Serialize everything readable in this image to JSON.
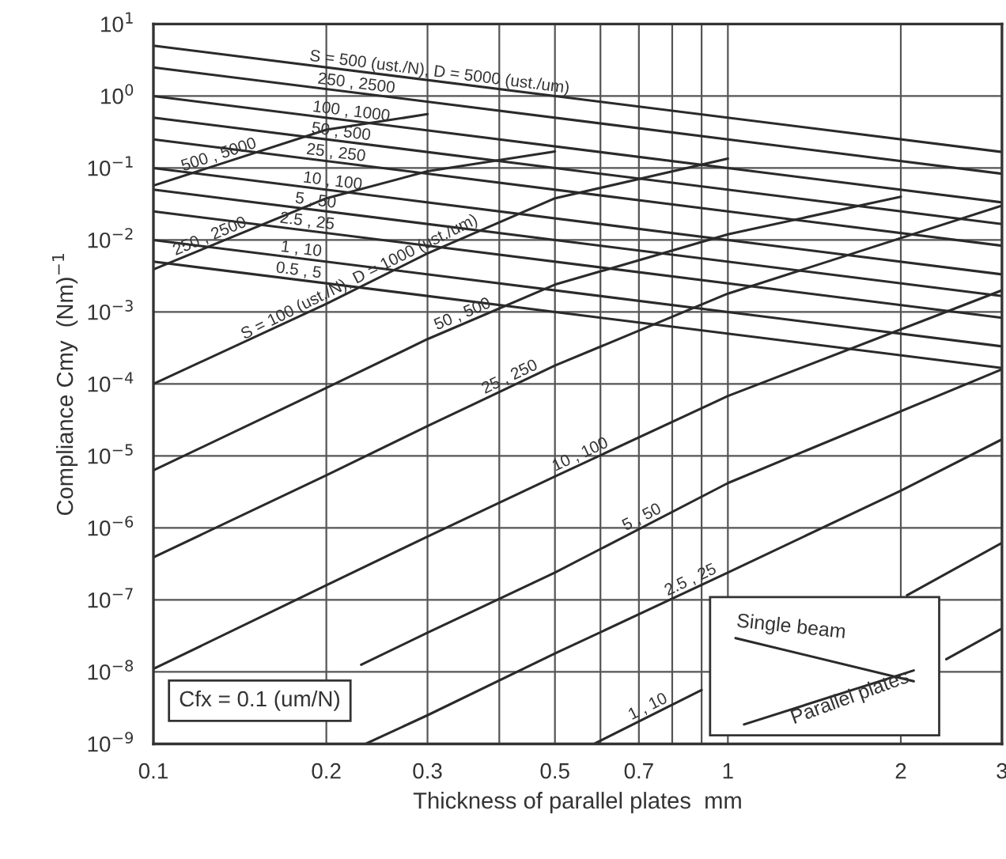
{
  "chart_data": {
    "type": "line",
    "xlabel": "Thickness of parallel plates  mm",
    "ylabel": "Compliance Cmy  (Nm)$^{−1}$",
    "log": "xy",
    "grid": true,
    "xlim": [
      0.1,
      3
    ],
    "ylim": [
      1e-09,
      10
    ],
    "xticks": [
      0.1,
      0.2,
      0.3,
      {
        "value": 0.4,
        "label": null
      },
      0.5,
      {
        "value": 0.6,
        "label": null
      },
      0.7,
      {
        "value": 0.8,
        "label": null
      },
      {
        "value": 0.9,
        "label": null
      },
      1,
      2,
      3
    ],
    "yticks": [
      {
        "value": 1e-09,
        "label": "10$^{−9}$"
      },
      {
        "value": 1e-08,
        "label": "10$^{−8}$"
      },
      {
        "value": 1e-07,
        "label": "10$^{−7}$"
      },
      {
        "value": 1e-06,
        "label": "10$^{−6}$"
      },
      {
        "value": 1e-05,
        "label": "10$^{−5}$"
      },
      {
        "value": 0.0001,
        "label": "10$^{−4}$"
      },
      {
        "value": 0.001,
        "label": "10$^{−3}$"
      },
      {
        "value": 0.01,
        "label": "10$^{−2}$"
      },
      {
        "value": 0.1,
        "label": "10$^{−1}$"
      },
      {
        "value": 1,
        "label": "10$^{0}$"
      },
      {
        "value": 10,
        "label": "10$^{1}$"
      }
    ],
    "annotations": [
      "Cfx = 0.1 (um/N)",
      "Single beam",
      "Parallel plates"
    ],
    "series": [
      {
        "name": "S = 500 (ust./N), D = 5000 (ust./um)",
        "color": "#2a2a2a",
        "x": [
          0.1,
          3
        ],
        "values": [
          5,
          0.167
        ]
      },
      {
        "name": "250 , 2500",
        "color": "#2a2a2a",
        "x": [
          0.1,
          3
        ],
        "values": [
          2.5,
          0.0833
        ]
      },
      {
        "name": "100 , 1000",
        "color": "#2a2a2a",
        "x": [
          0.1,
          3
        ],
        "values": [
          1,
          0.0333
        ]
      },
      {
        "name": "50 , 500",
        "color": "#2a2a2a",
        "x": [
          0.1,
          3
        ],
        "values": [
          0.5,
          0.0167
        ]
      },
      {
        "name": "25 , 250",
        "color": "#2a2a2a",
        "x": [
          0.1,
          3
        ],
        "values": [
          0.25,
          0.00833
        ]
      },
      {
        "name": "10 , 100",
        "color": "#2a2a2a",
        "x": [
          0.1,
          3
        ],
        "values": [
          0.1,
          0.00333
        ]
      },
      {
        "name": "5 , 50",
        "color": "#2a2a2a",
        "x": [
          0.1,
          3
        ],
        "values": [
          0.05,
          0.00167
        ]
      },
      {
        "name": "2.5 , 25",
        "color": "#2a2a2a",
        "x": [
          0.1,
          3
        ],
        "values": [
          0.025,
          0.000833
        ]
      },
      {
        "name": "1 , 10",
        "color": "#2a2a2a",
        "x": [
          0.1,
          3
        ],
        "values": [
          0.01,
          0.000333
        ]
      },
      {
        "name": "0.5 , 5",
        "color": "#2a2a2a",
        "x": [
          0.1,
          3
        ],
        "values": [
          0.005,
          0.000167
        ]
      },
      {
        "name": "500 , 5000",
        "color": "#2a2a2a",
        "x": [
          0.1,
          0.2,
          0.3
        ],
        "values": [
          0.057,
          0.34,
          0.56
        ]
      },
      {
        "name": "250 , 2500",
        "color": "#2a2a2a",
        "x": [
          0.1,
          0.2,
          0.3,
          0.5
        ],
        "values": [
          0.0039,
          0.038,
          0.09,
          0.17
        ]
      },
      {
        "name": "S = 100 (ust./N), D = 1000 (ust./um)",
        "color": "#2a2a2a",
        "x": [
          0.1,
          0.2,
          0.3,
          0.5,
          1
        ],
        "values": [
          0.0001,
          0.0013,
          0.0065,
          0.038,
          0.135
        ]
      },
      {
        "name": "50 , 500",
        "color": "#2a2a2a",
        "x": [
          0.1,
          0.2,
          0.3,
          0.5,
          1,
          2
        ],
        "values": [
          6.3e-06,
          8.8e-05,
          0.00042,
          0.0024,
          0.012,
          0.04
        ]
      },
      {
        "name": "25 , 250",
        "color": "#2a2a2a",
        "x": [
          0.1,
          0.2,
          0.3,
          0.5,
          1,
          3
        ],
        "values": [
          3.9e-07,
          5.4e-06,
          2.6e-05,
          0.00018,
          0.0018,
          0.03
        ]
      },
      {
        "name": "10 , 100",
        "color": "#2a2a2a",
        "x": [
          0.1,
          0.2,
          0.3,
          0.5,
          1,
          3
        ],
        "values": [
          1.1e-08,
          1.6e-07,
          7.6e-07,
          5.2e-06,
          6.8e-05,
          0.002
        ]
      },
      {
        "name": "5 , 50",
        "color": "#2a2a2a",
        "x": [
          0.23,
          0.3,
          0.5,
          1,
          3
        ],
        "values": [
          1.26e-08,
          3.5e-08,
          2.4e-07,
          4.2e-06,
          0.00016
        ]
      },
      {
        "name": "2.5 , 25",
        "color": "#2a2a2a",
        "x": [
          0.234,
          0.3,
          0.5,
          1,
          2,
          3
        ],
        "values": [
          1e-09,
          2.5e-09,
          1.8e-08,
          2.4e-07,
          3.3e-06,
          1.7e-05
        ]
      },
      {
        "name": "1 , 10",
        "color": "#2a2a2a",
        "x": [
          0.585,
          0.9,
          1.5,
          2.05,
          3
        ],
        "values": [
          1e-09,
          5.6e-09,
          null,
          1.16e-07,
          6.2e-07
        ]
      },
      {
        "color": "#2a2a2a",
        "x": [
          2.4,
          3
        ],
        "values": [
          1.5e-08,
          4e-08
        ]
      }
    ]
  }
}
